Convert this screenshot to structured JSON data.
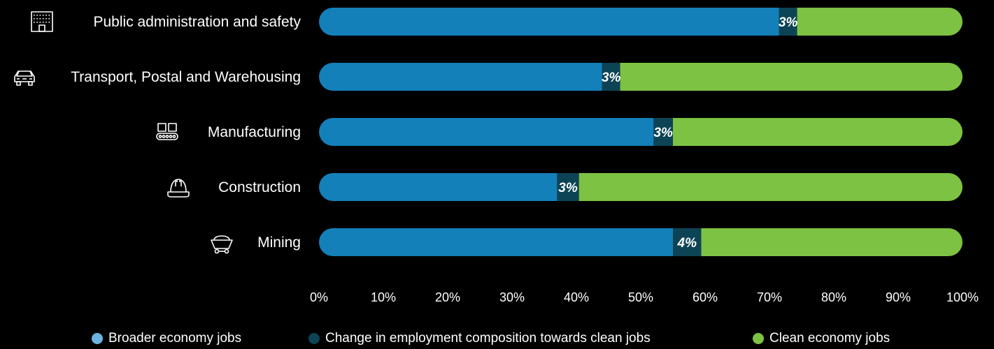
{
  "chart_data": {
    "type": "bar",
    "orientation": "horizontal",
    "stacked": true,
    "categories": [
      "Public administration and safety",
      "Transport, Postal and Warehousing",
      "Manufacturing",
      "Construction",
      "Mining"
    ],
    "category_icons": [
      "office-building-icon",
      "car-icon",
      "factory-conveyor-icon",
      "hard-hat-icon",
      "mining-cart-icon"
    ],
    "series": [
      {
        "name": "Broader economy jobs",
        "color": "#1380BA",
        "values": [
          71.5,
          44,
          52,
          37,
          55
        ]
      },
      {
        "name": "Change in employment composition towards clean jobs",
        "color": "#0D4455",
        "values": [
          2.8,
          2.8,
          3,
          3.4,
          4.4
        ],
        "labels": [
          "3%",
          "3%",
          "3%",
          "3%",
          "4%"
        ]
      },
      {
        "name": "Clean economy jobs",
        "color": "#7DC242",
        "values": [
          25.7,
          53.2,
          45,
          59.6,
          40.6
        ]
      }
    ],
    "xlim": [
      0,
      100
    ],
    "xticks": [
      "0%",
      "10%",
      "20%",
      "30%",
      "40%",
      "50%",
      "60%",
      "70%",
      "80%",
      "90%",
      "100%"
    ],
    "legend_position": "bottom",
    "grid": false
  }
}
